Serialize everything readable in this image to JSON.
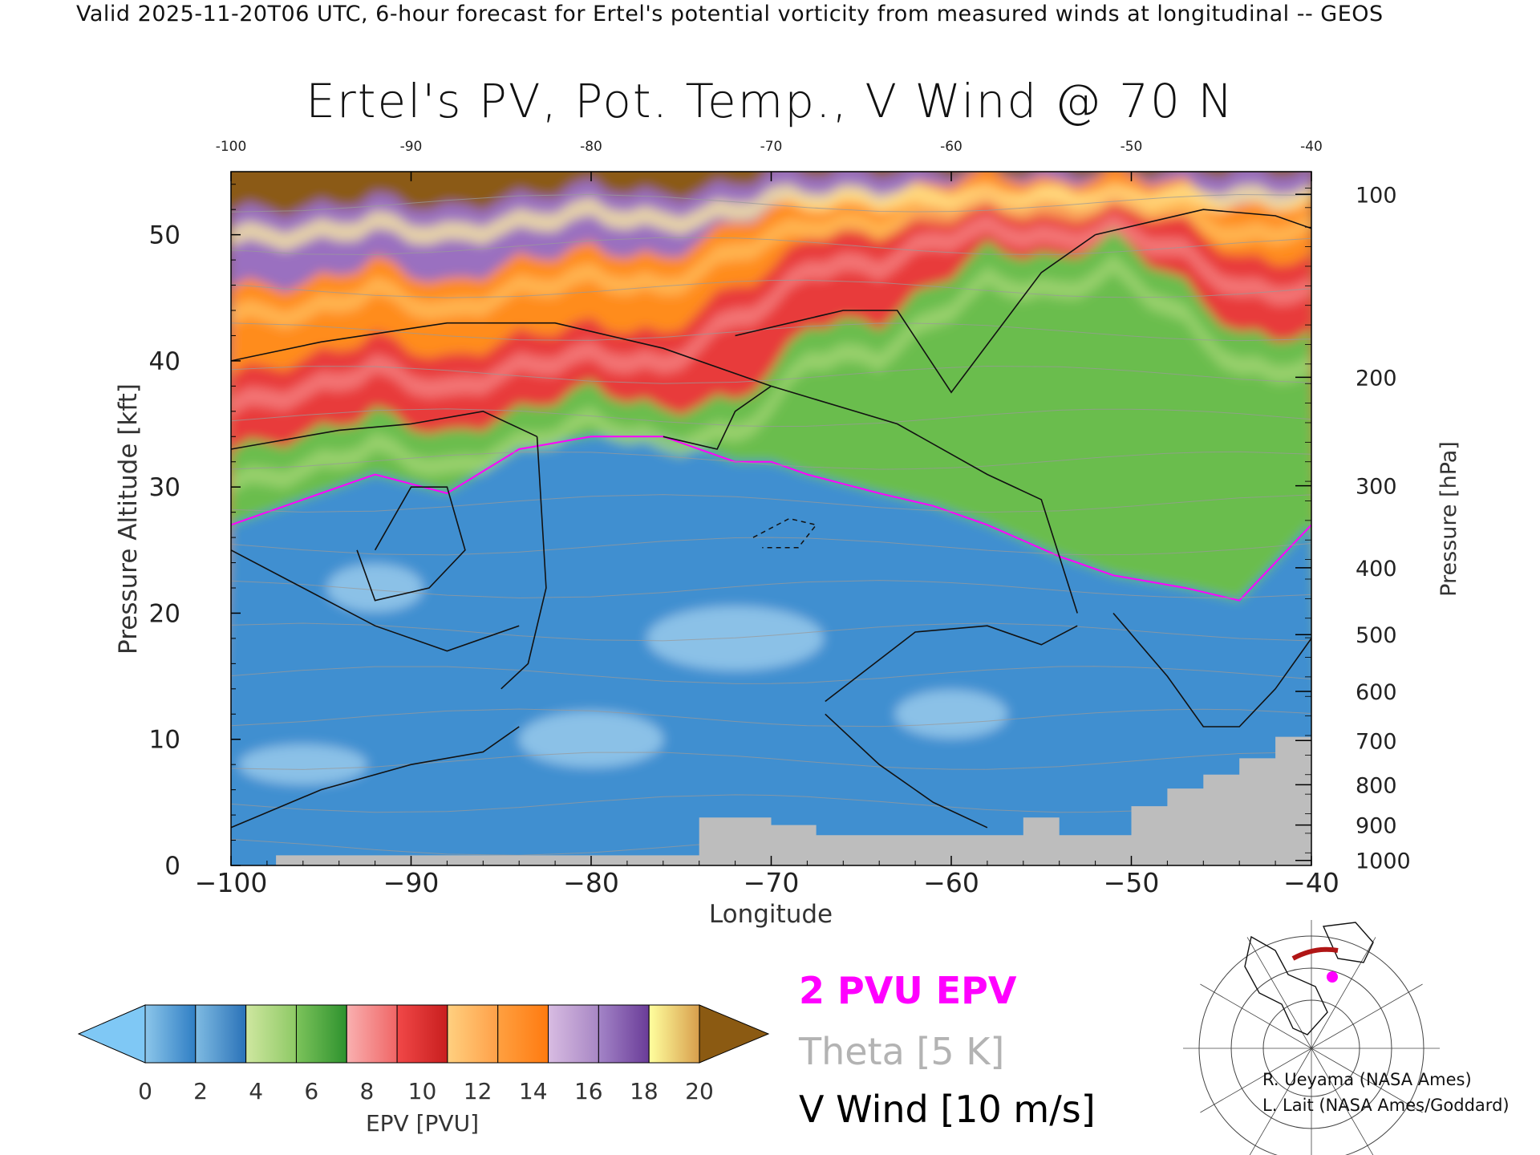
{
  "top_caption": "Valid 2025-11-20T06 UTC, 6-hour forecast for Ertel's potential vorticity from measured winds at longitudinal -- GEOS",
  "title": "Ertel's PV, Pot. Temp., V Wind @ 70 N",
  "colorbar": {
    "label": "EPV [PVU]",
    "ticks": [
      "0",
      "2",
      "4",
      "6",
      "8",
      "10",
      "12",
      "14",
      "16",
      "18",
      "20"
    ],
    "under_color": "#7fc8f5",
    "over_color": "#8b5a12",
    "segments": [
      [
        "#8cc6ea",
        "#2f7ec4"
      ],
      [
        "#7fbbe2",
        "#2a72b8"
      ],
      [
        "#cfe7a0",
        "#8ec965"
      ],
      [
        "#7cc35b",
        "#2e922e"
      ],
      [
        "#f9b0b0",
        "#f06666"
      ],
      [
        "#f14848",
        "#c81e1e"
      ],
      [
        "#ffd080",
        "#ffa048"
      ],
      [
        "#ffa040",
        "#ff7a10"
      ],
      [
        "#d8bce2",
        "#a887c4"
      ],
      [
        "#a384c7",
        "#6a3c98"
      ],
      [
        "#ffff9e",
        "#d89e4c"
      ]
    ]
  },
  "legend": {
    "epv_contour": "2 PVU EPV",
    "theta": "Theta [5 K]",
    "wind": "V Wind [10 m/s]"
  },
  "credits": [
    "R. Ueyama (NASA Ames)",
    "L. Lait (NASA Ames/Goddard)"
  ],
  "chart_data": {
    "type": "heatmap",
    "title": "Ertel's PV, Pot. Temp., V Wind @ 70 N",
    "xlabel": "Longitude",
    "ylabel": "Pressure Altitude [kft]",
    "y2label": "Pressure [hPa]",
    "xlim": [
      -100,
      -40
    ],
    "ylim": [
      0,
      55
    ],
    "x_ticks": [
      -100,
      -90,
      -80,
      -70,
      -60,
      -50,
      -40
    ],
    "x_tick_labels": [
      "−100",
      "−90",
      "−80",
      "−70",
      "−60",
      "−50",
      "−40"
    ],
    "top_tick_labels": [
      "-100",
      "-90",
      "-80",
      "-70",
      "-60",
      "-50",
      "-40"
    ],
    "y_ticks": [
      0,
      10,
      20,
      30,
      40,
      50
    ],
    "pressure_ticks": [
      {
        "label": "100",
        "kft": 53.2
      },
      {
        "label": "200",
        "kft": 38.7
      },
      {
        "label": "300",
        "kft": 30.1
      },
      {
        "label": "400",
        "kft": 23.6
      },
      {
        "label": "500",
        "kft": 18.3
      },
      {
        "label": "600",
        "kft": 13.8
      },
      {
        "label": "700",
        "kft": 9.9
      },
      {
        "label": "800",
        "kft": 6.4
      },
      {
        "label": "900",
        "kft": 3.2
      },
      {
        "label": "1000",
        "kft": 0.4
      }
    ],
    "pv_bands_kft": {
      "longitudes": [
        -100,
        -96,
        -92,
        -88,
        -84,
        -80,
        -76,
        -72,
        -70,
        -68,
        -64,
        -61,
        -58,
        -54,
        -51,
        -47,
        -44,
        -40
      ],
      "top_2pvu": [
        27,
        29,
        31,
        29.5,
        33,
        34,
        34,
        32,
        32,
        31,
        29.5,
        28.5,
        27,
        24.5,
        23,
        22,
        21,
        27
      ],
      "top_4pvu": [
        33,
        34,
        36,
        34,
        36,
        38,
        36,
        37,
        39,
        43,
        43,
        46,
        49,
        48,
        50,
        46,
        42,
        42
      ],
      "top_8pvu": [
        39,
        40,
        42,
        40,
        42,
        43,
        42,
        46,
        47,
        50,
        50,
        52,
        53,
        52,
        53,
        51,
        48,
        48
      ],
      "top_12pvu": [
        46,
        46,
        48,
        46,
        48,
        49,
        48,
        51,
        52,
        53,
        53,
        54,
        55,
        54,
        55,
        54,
        52,
        53
      ],
      "top_16pvu": [
        52,
        52,
        53,
        52,
        53,
        54,
        53,
        54,
        55,
        55,
        55,
        55,
        55,
        55,
        55,
        55,
        55,
        55
      ]
    },
    "theta_levels_K": [
      270,
      280,
      290,
      300,
      310,
      320,
      330,
      340,
      350,
      360,
      370,
      380,
      390,
      400,
      410,
      420
    ],
    "wind_contours_m_s": [
      -10,
      0,
      10
    ],
    "terrain_kft": {
      "longitudes": [
        -97.5,
        -74,
        -70,
        -67.5,
        -56,
        -54,
        -50,
        -48,
        -46,
        -44,
        -42,
        -40
      ],
      "height": [
        0.8,
        3.8,
        3.2,
        2.4,
        3.8,
        2.4,
        4.7,
        6.1,
        7.2,
        8.5,
        10.2,
        11.8
      ]
    }
  }
}
